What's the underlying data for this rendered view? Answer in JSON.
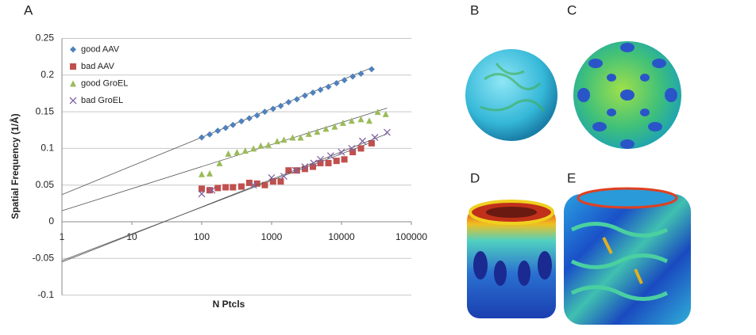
{
  "panel_labels": [
    "A",
    "B",
    "C",
    "D",
    "E"
  ],
  "chart_data": {
    "type": "scatter",
    "x_label": "N Ptcls",
    "y_label": "Spatial Frequency (1/Å)",
    "xscale": "log",
    "xlim": [
      1,
      100000
    ],
    "xticks": [
      1,
      10,
      100,
      1000,
      10000,
      100000
    ],
    "ylim": [
      -0.1,
      0.25
    ],
    "yticks": [
      -0.1,
      -0.05,
      0,
      0.05,
      0.1,
      0.15,
      0.2,
      0.25
    ],
    "grid": true,
    "legend": "upper-left",
    "series": [
      {
        "name": "good AAV",
        "color": "#4f81bd",
        "marker": "diamond",
        "x": [
          100,
          130,
          170,
          220,
          280,
          370,
          480,
          620,
          800,
          1050,
          1350,
          1750,
          2300,
          3000,
          3900,
          5000,
          6500,
          8500,
          11000,
          14500,
          19000,
          27000
        ],
        "values": [
          0.115,
          0.119,
          0.124,
          0.128,
          0.132,
          0.137,
          0.141,
          0.145,
          0.15,
          0.154,
          0.158,
          0.163,
          0.167,
          0.172,
          0.176,
          0.18,
          0.184,
          0.189,
          0.193,
          0.198,
          0.202,
          0.208
        ],
        "trendline": {
          "x": [
            1,
            27000
          ],
          "values": [
            0.037,
            0.21
          ]
        }
      },
      {
        "name": "bad AAV",
        "color": "#c0504d",
        "marker": "square",
        "x": [
          100,
          130,
          170,
          220,
          280,
          370,
          480,
          620,
          800,
          1050,
          1350,
          1750,
          2300,
          3000,
          3900,
          5000,
          6500,
          8500,
          11000,
          14500,
          19000,
          27000
        ],
        "values": [
          0.045,
          0.043,
          0.046,
          0.047,
          0.047,
          0.048,
          0.053,
          0.052,
          0.05,
          0.055,
          0.055,
          0.07,
          0.07,
          0.072,
          0.075,
          0.08,
          0.08,
          0.083,
          0.085,
          0.095,
          0.1,
          0.107
        ],
        "trendline": {
          "x": [
            1,
            30000
          ],
          "values": [
            -0.053,
            0.11
          ]
        }
      },
      {
        "name": "good GroEL",
        "color": "#9bbb59",
        "marker": "triangle",
        "x": [
          100,
          130,
          180,
          240,
          320,
          420,
          550,
          700,
          900,
          1200,
          1500,
          2000,
          2600,
          3400,
          4500,
          6000,
          8000,
          10500,
          14000,
          19000,
          25000,
          33000,
          43000
        ],
        "values": [
          0.065,
          0.066,
          0.08,
          0.093,
          0.095,
          0.097,
          0.1,
          0.104,
          0.105,
          0.11,
          0.112,
          0.115,
          0.115,
          0.12,
          0.123,
          0.127,
          0.13,
          0.135,
          0.138,
          0.14,
          0.138,
          0.15,
          0.147
        ],
        "trendline": {
          "x": [
            1,
            45000
          ],
          "values": [
            0.015,
            0.155
          ]
        }
      },
      {
        "name": "bad GroEL",
        "color": "#8064a2",
        "marker": "x",
        "x": [
          100,
          140,
          550,
          1000,
          1500,
          2200,
          3000,
          4000,
          5000,
          7000,
          10000,
          14000,
          20000,
          30000,
          45000
        ],
        "values": [
          0.038,
          0.043,
          0.05,
          0.06,
          0.062,
          0.07,
          0.075,
          0.08,
          0.085,
          0.09,
          0.095,
          0.1,
          0.11,
          0.115,
          0.122
        ],
        "trendline": {
          "x": [
            1,
            45000
          ],
          "values": [
            -0.055,
            0.12
          ]
        }
      }
    ]
  }
}
